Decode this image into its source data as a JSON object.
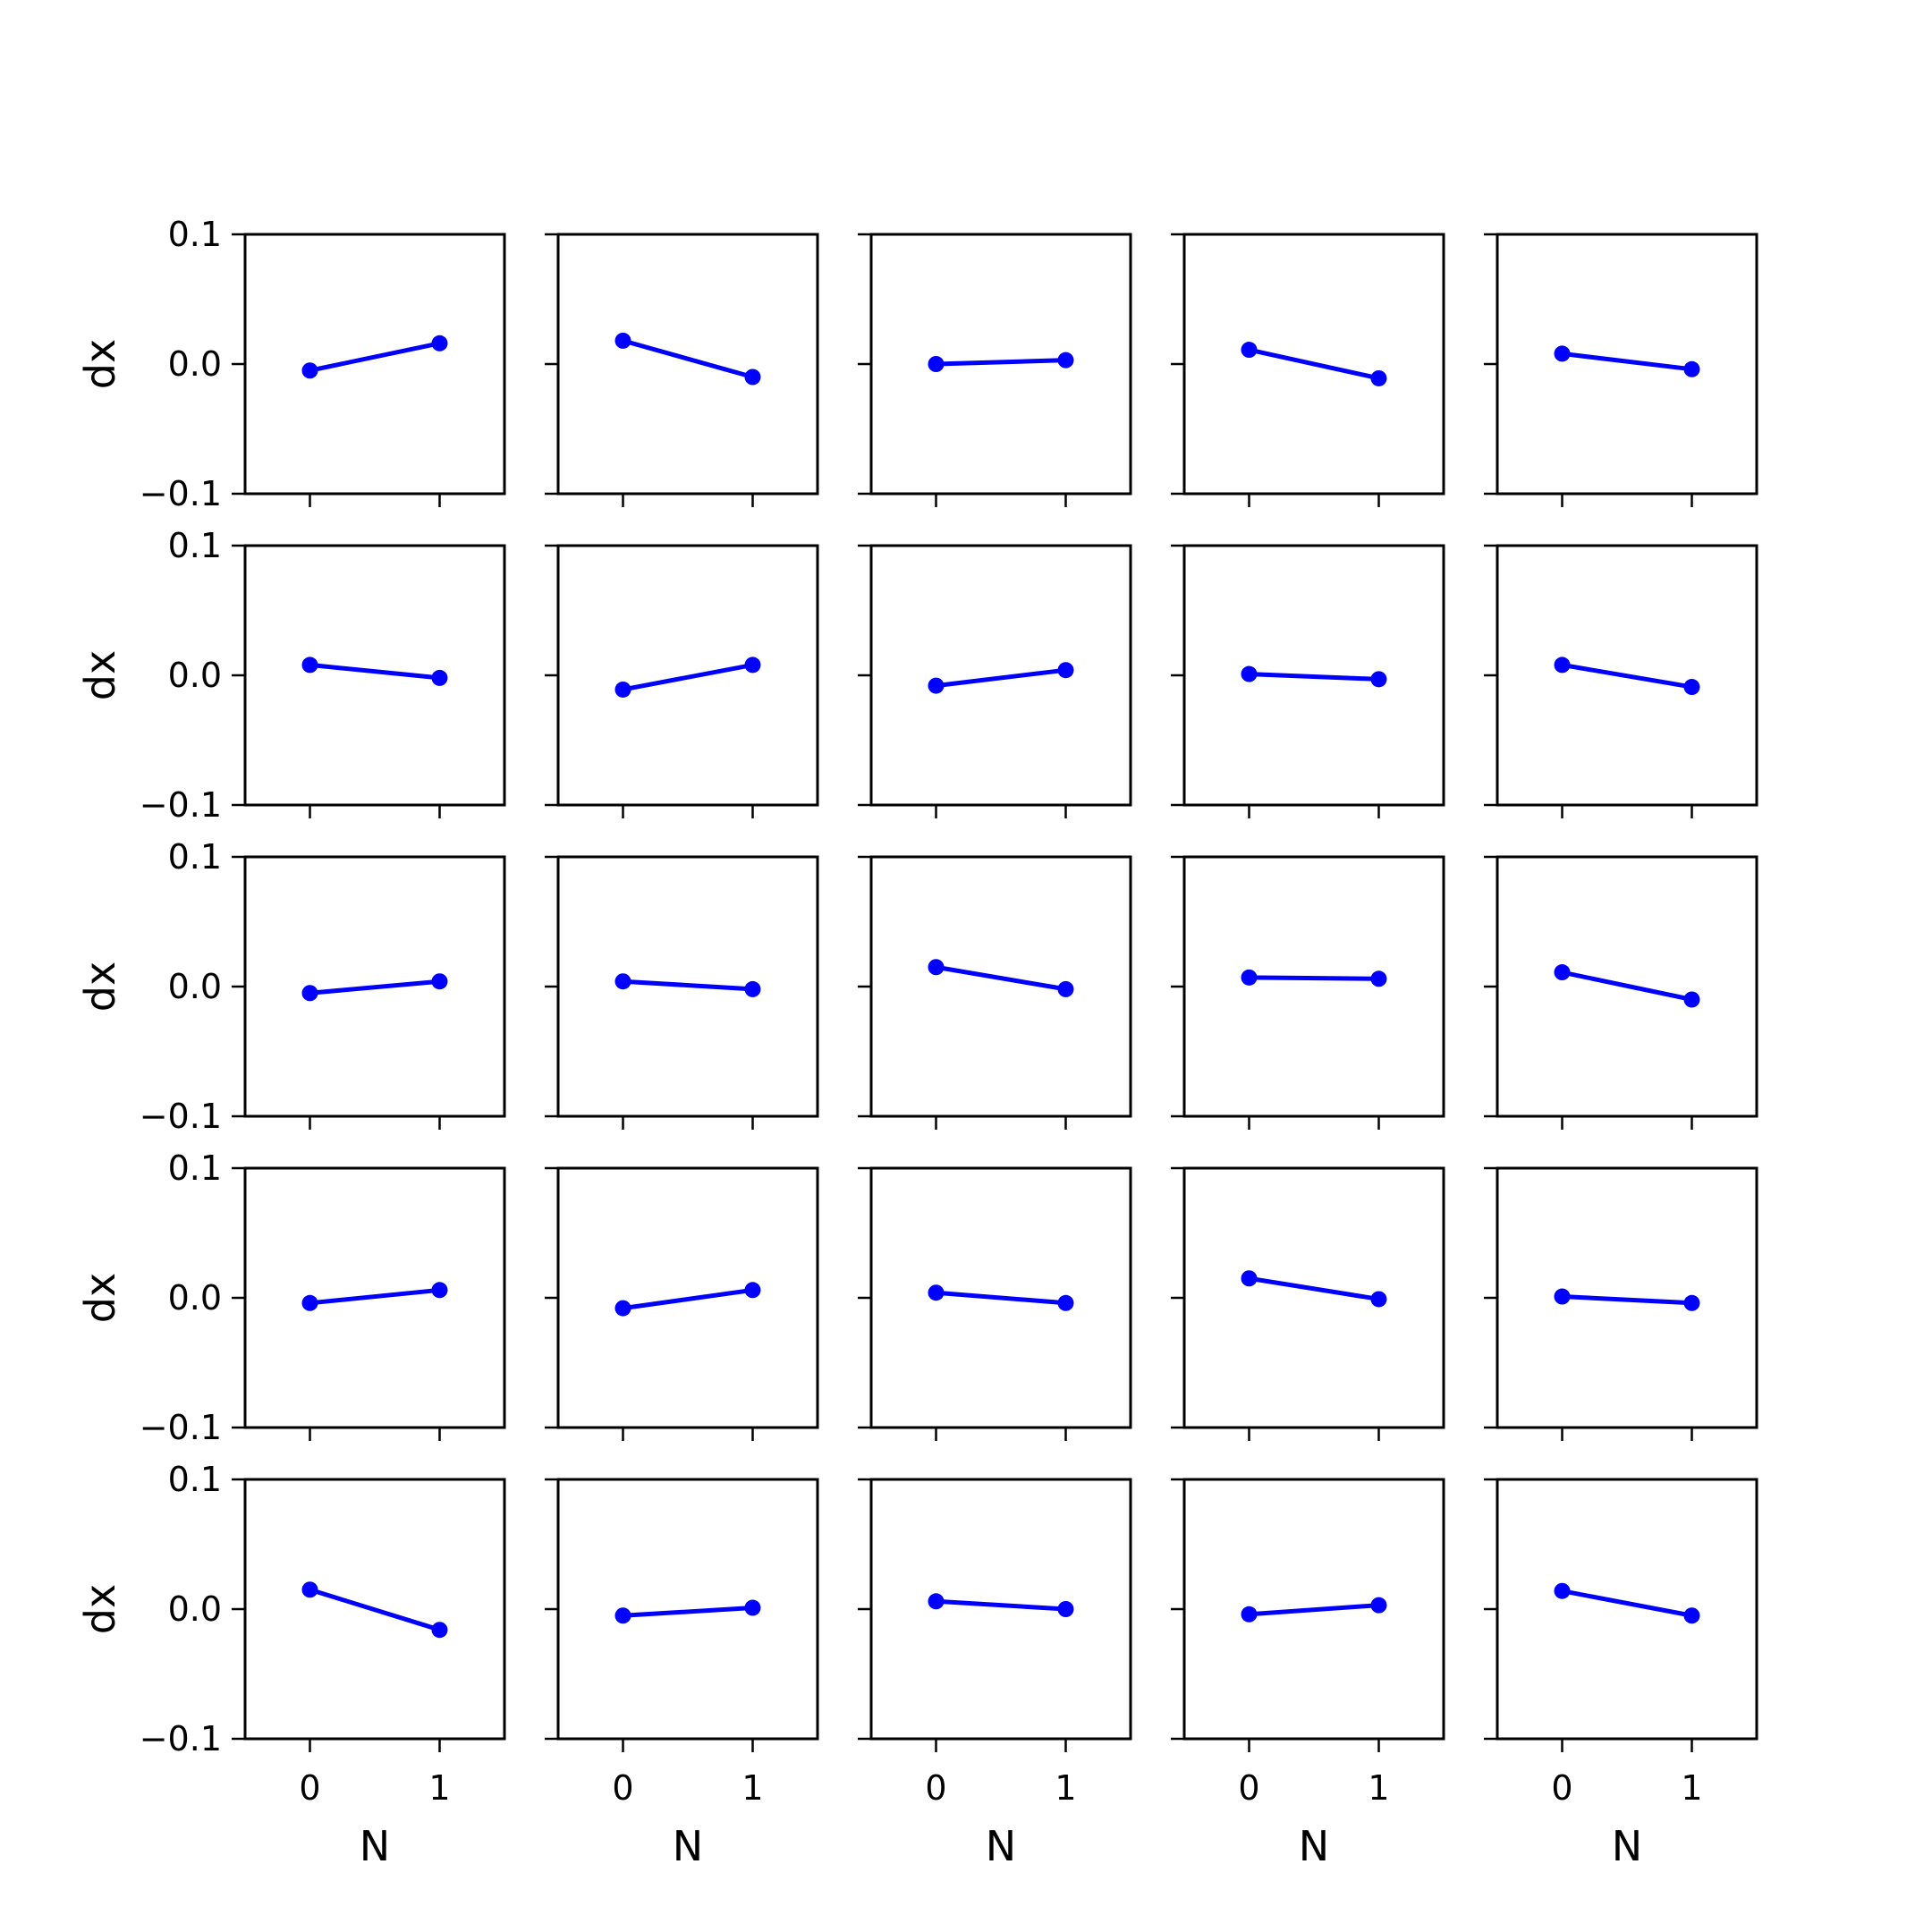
{
  "chart_data": {
    "type": "line",
    "grid": false,
    "layout": {
      "rows": 5,
      "cols": 5
    },
    "x": [
      0,
      1
    ],
    "xlim": [
      -0.5,
      1.5
    ],
    "ylim": [
      -0.1,
      0.1
    ],
    "xticks": [
      "0",
      "1"
    ],
    "yticks": [
      "0.1",
      "0.0",
      "−0.1"
    ],
    "xlabel": "N",
    "ylabel": "dx",
    "line_color": "#0000ff",
    "panels": [
      [
        -0.005,
        0.016
      ],
      [
        0.018,
        -0.01
      ],
      [
        0.0,
        0.003
      ],
      [
        0.011,
        -0.011
      ],
      [
        0.008,
        -0.004
      ],
      [
        0.008,
        -0.002
      ],
      [
        -0.011,
        0.008
      ],
      [
        -0.008,
        0.004
      ],
      [
        0.001,
        -0.003
      ],
      [
        0.008,
        -0.009
      ],
      [
        -0.005,
        0.004
      ],
      [
        0.004,
        -0.002
      ],
      [
        0.015,
        -0.002
      ],
      [
        0.007,
        0.006
      ],
      [
        0.011,
        -0.01
      ],
      [
        -0.004,
        0.006
      ],
      [
        -0.008,
        0.006
      ],
      [
        0.004,
        -0.004
      ],
      [
        0.015,
        -0.001
      ],
      [
        0.001,
        -0.004
      ],
      [
        0.015,
        -0.016
      ],
      [
        -0.005,
        0.001
      ],
      [
        0.006,
        0.0
      ],
      [
        -0.004,
        0.003
      ],
      [
        0.014,
        -0.005
      ]
    ]
  }
}
